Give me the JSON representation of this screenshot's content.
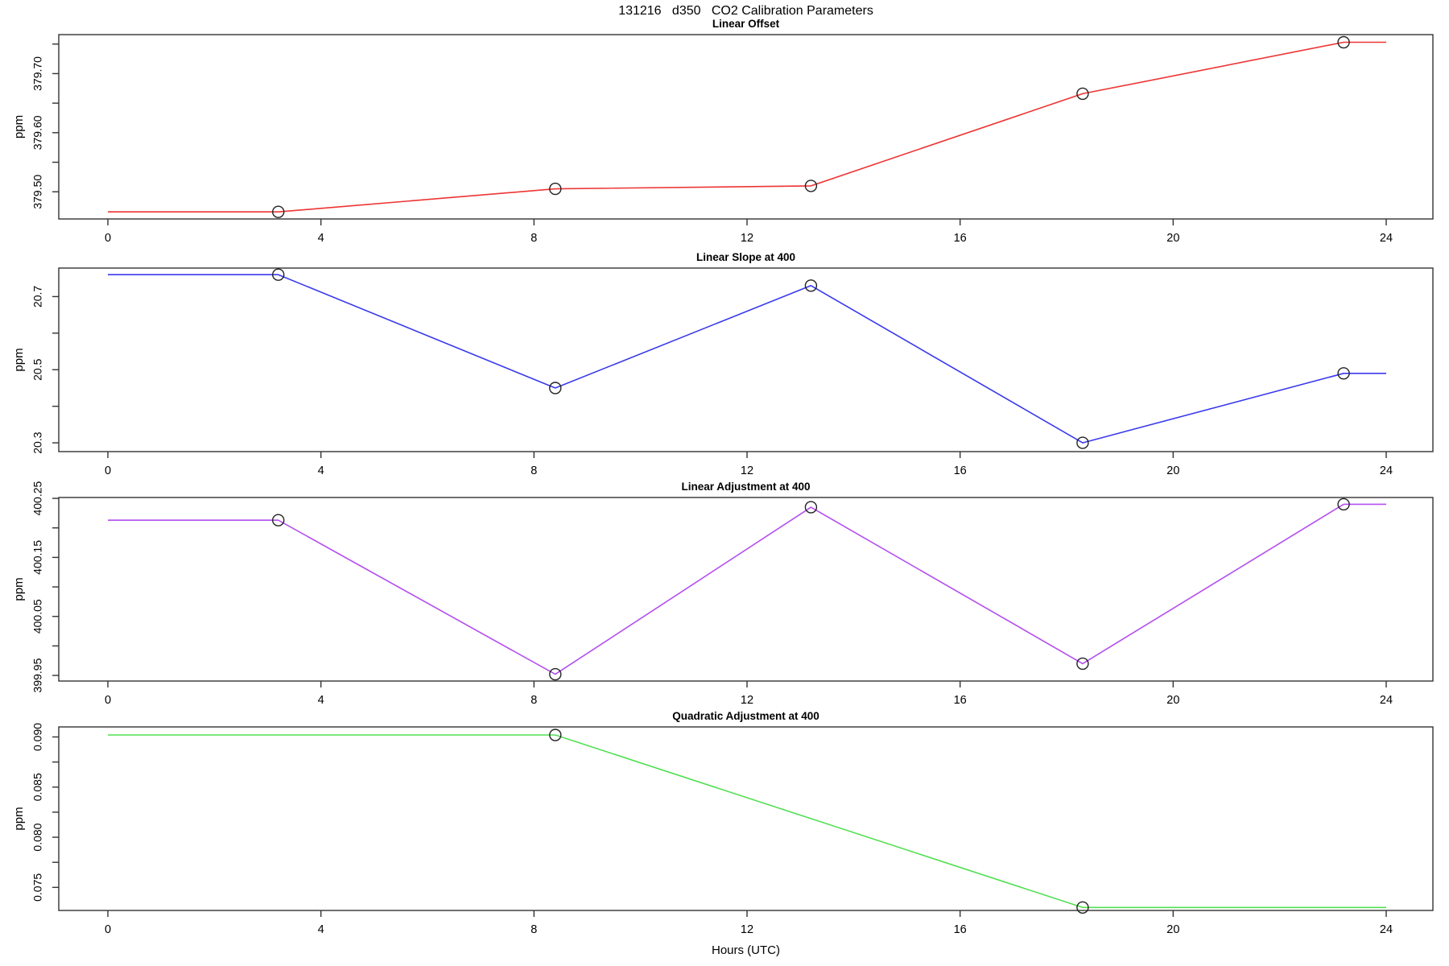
{
  "page": {
    "main_title": "131216   d350   CO2 Calibration Parameters",
    "xlabel": "Hours (UTC)"
  },
  "chart_data": [
    {
      "type": "line",
      "title": "Linear Offset",
      "ylabel": "ppm",
      "color": "#ee3434",
      "marker": "open-circle",
      "x": [
        3.2,
        8.4,
        13.2,
        18.3,
        23.2
      ],
      "y": [
        379.466,
        379.505,
        379.51,
        379.666,
        379.753
      ],
      "line": {
        "x": [
          0,
          3.2,
          8.4,
          13.2,
          18.3,
          23.2,
          24
        ],
        "y": [
          379.466,
          379.466,
          379.505,
          379.51,
          379.666,
          379.753,
          379.753
        ]
      },
      "ylim": [
        379.454,
        379.766
      ],
      "yticks_major": {
        "values": [
          379.5,
          379.6,
          379.7
        ],
        "labels": [
          "379.50",
          "379.60",
          "379.70"
        ]
      },
      "yticks_minor": [
        379.55,
        379.65,
        379.75
      ],
      "xticks": {
        "values": [
          0,
          4,
          8,
          12,
          16,
          20,
          24
        ],
        "labels": [
          "0",
          "4",
          "8",
          "12",
          "16",
          "20",
          "24"
        ]
      },
      "xlim": [
        -1,
        25
      ]
    },
    {
      "type": "line",
      "title": "Linear Slope at 400",
      "ylabel": "ppm",
      "color": "#3a3aee",
      "marker": "open-circle",
      "x": [
        3.2,
        8.4,
        13.2,
        18.3,
        23.2
      ],
      "y": [
        20.76,
        20.45,
        20.73,
        20.3,
        20.49
      ],
      "line": {
        "x": [
          0,
          3.2,
          8.4,
          13.2,
          18.3,
          23.2,
          24
        ],
        "y": [
          20.76,
          20.76,
          20.45,
          20.73,
          20.3,
          20.49,
          20.49
        ]
      },
      "ylim": [
        20.276,
        20.778
      ],
      "yticks_major": {
        "values": [
          20.3,
          20.5,
          20.7
        ],
        "labels": [
          "20.3",
          "20.5",
          "20.7"
        ]
      },
      "yticks_minor": [
        20.4,
        20.6
      ],
      "xticks": {
        "values": [
          0,
          4,
          8,
          12,
          16,
          20,
          24
        ],
        "labels": [
          "0",
          "4",
          "8",
          "12",
          "16",
          "20",
          "24"
        ]
      },
      "xlim": [
        -1,
        25
      ]
    },
    {
      "type": "line",
      "title": "Linear Adjustment at 400",
      "ylabel": "ppm",
      "color": "#b44ef0",
      "marker": "open-circle",
      "x": [
        3.2,
        8.4,
        13.2,
        18.3,
        23.2
      ],
      "y": [
        400.213,
        399.952,
        400.235,
        399.97,
        400.24
      ],
      "line": {
        "x": [
          0,
          3.2,
          8.4,
          13.2,
          18.3,
          23.2,
          24
        ],
        "y": [
          400.213,
          400.213,
          399.952,
          400.235,
          399.97,
          400.24,
          400.24
        ]
      },
      "ylim": [
        399.9405,
        400.2515
      ],
      "yticks_major": {
        "values": [
          399.95,
          400.05,
          400.15,
          400.25
        ],
        "labels": [
          "399.95",
          "400.05",
          "400.15",
          "400.25"
        ]
      },
      "yticks_minor": [
        400.0,
        400.1,
        400.2
      ],
      "xticks": {
        "values": [
          0,
          4,
          8,
          12,
          16,
          20,
          24
        ],
        "labels": [
          "0",
          "4",
          "8",
          "12",
          "16",
          "20",
          "24"
        ]
      },
      "xlim": [
        -1,
        25
      ]
    },
    {
      "type": "line",
      "title": "Quadratic Adjustment at 400",
      "ylabel": "ppm",
      "color": "#52e052",
      "marker": "open-circle",
      "x": [
        8.4,
        18.3
      ],
      "y": [
        0.0902,
        0.073
      ],
      "line": {
        "x": [
          0,
          8.4,
          18.3,
          24
        ],
        "y": [
          0.0902,
          0.0902,
          0.073,
          0.073
        ]
      },
      "ylim": [
        0.0727,
        0.091
      ],
      "yticks_major": {
        "values": [
          0.075,
          0.08,
          0.085,
          0.09
        ],
        "labels": [
          "0.075",
          "0.080",
          "0.085",
          "0.090"
        ]
      },
      "yticks_minor": [
        0.0775,
        0.0825,
        0.0875
      ],
      "xticks": {
        "values": [
          0,
          4,
          8,
          12,
          16,
          20,
          24
        ],
        "labels": [
          "0",
          "4",
          "8",
          "12",
          "16",
          "20",
          "24"
        ]
      },
      "xlim": [
        -1,
        25
      ]
    }
  ]
}
